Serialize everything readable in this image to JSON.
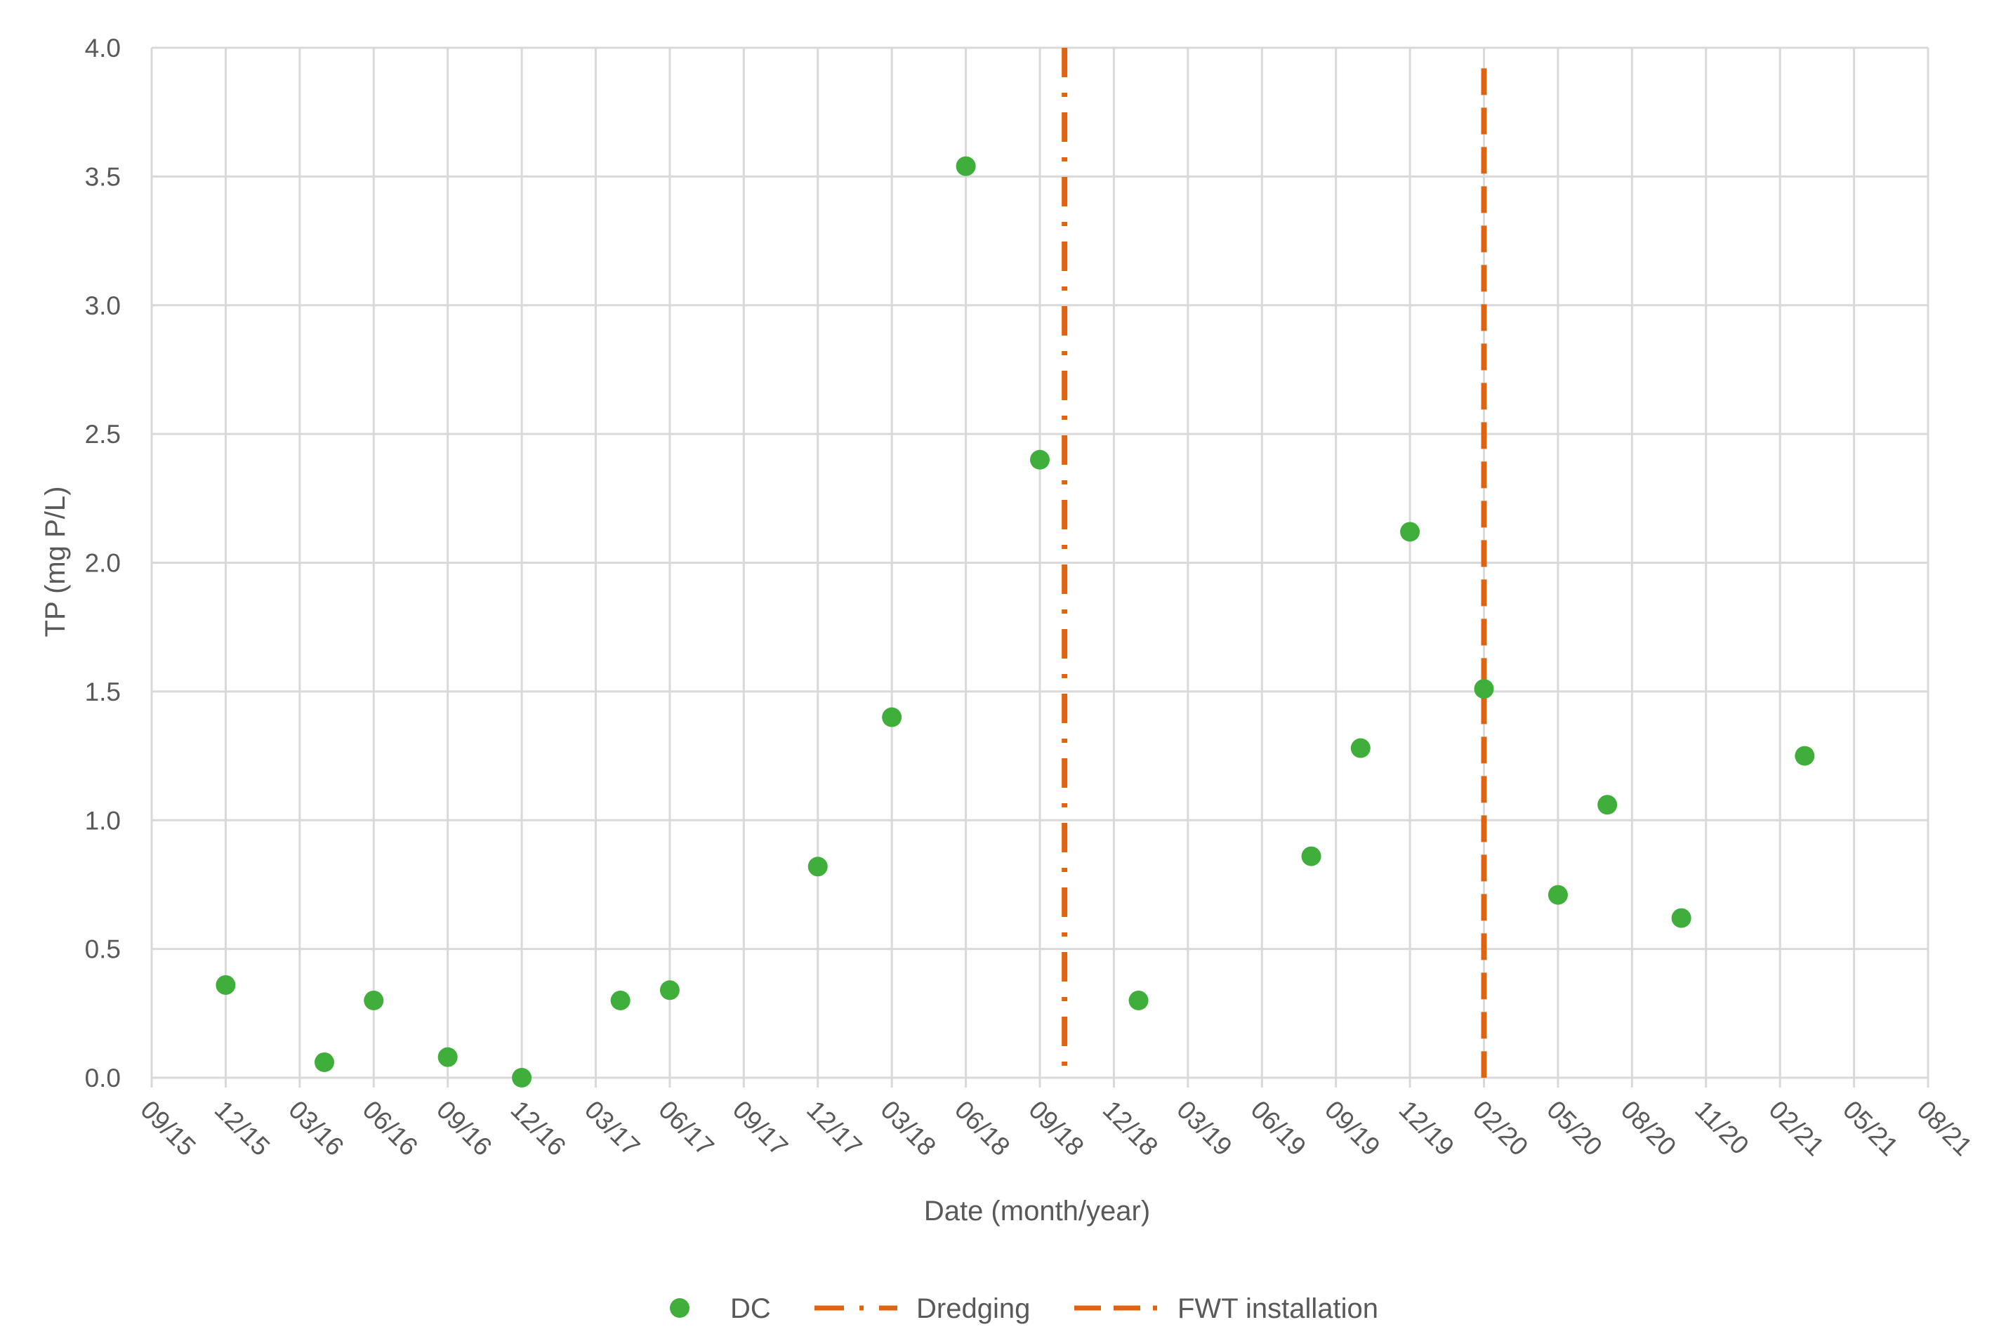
{
  "chart_data": {
    "type": "scatter",
    "title": "",
    "xlabel": "Date (month/year)",
    "ylabel": "TP (mg P/L)",
    "x_ticks": [
      "09/15",
      "12/15",
      "03/16",
      "06/16",
      "09/16",
      "12/16",
      "03/17",
      "06/17",
      "09/17",
      "12/17",
      "03/18",
      "06/18",
      "09/18",
      "12/18",
      "03/19",
      "06/19",
      "09/19",
      "12/19",
      "02/20",
      "05/20",
      "08/20",
      "11/20",
      "02/21",
      "05/21",
      "08/21"
    ],
    "y_ticks": [
      "0.0",
      "0.5",
      "1.0",
      "1.5",
      "2.0",
      "2.5",
      "3.0",
      "3.5",
      "4.0"
    ],
    "ylim": [
      0,
      4
    ],
    "grid": true,
    "legend_position": "bottom",
    "series": [
      {
        "name": "DC",
        "color": "#3fae3a",
        "marker": "circle",
        "points": [
          {
            "x": "12/15",
            "y": 0.36
          },
          {
            "x": "04/16",
            "y": 0.06
          },
          {
            "x": "06/16",
            "y": 0.3
          },
          {
            "x": "09/16",
            "y": 0.08
          },
          {
            "x": "12/16",
            "y": 0.0
          },
          {
            "x": "04/17",
            "y": 0.3
          },
          {
            "x": "06/17",
            "y": 0.34
          },
          {
            "x": "12/17",
            "y": 0.82
          },
          {
            "x": "03/18",
            "y": 1.4
          },
          {
            "x": "06/18",
            "y": 3.54
          },
          {
            "x": "09/18",
            "y": 2.4
          },
          {
            "x": "01/19",
            "y": 0.3
          },
          {
            "x": "08/19",
            "y": 0.86
          },
          {
            "x": "10/19",
            "y": 1.28
          },
          {
            "x": "12/19",
            "y": 2.12
          },
          {
            "x": "02/20",
            "y": 1.51
          },
          {
            "x": "05/20",
            "y": 0.71
          },
          {
            "x": "07/20",
            "y": 1.06
          },
          {
            "x": "10/20",
            "y": 0.62
          },
          {
            "x": "03/21",
            "y": 1.25
          }
        ]
      }
    ],
    "reference_lines": [
      {
        "name": "Dredging",
        "x": "10/18",
        "style": "dash-dot",
        "color": "#e06310",
        "y_range": [
          0,
          4.0
        ]
      },
      {
        "name": "FWT installation",
        "x": "02/20",
        "style": "dashed",
        "color": "#e06310",
        "y_range": [
          0,
          3.92
        ]
      }
    ]
  }
}
